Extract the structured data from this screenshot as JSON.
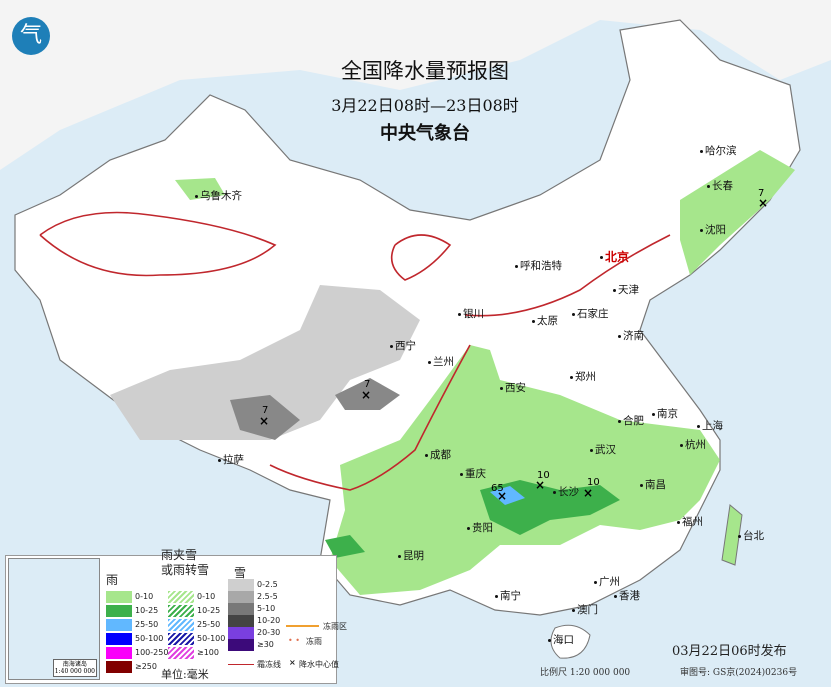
{
  "title": "全国降水量预报图",
  "period": "3月22日08时—23日08时",
  "issuer": "中央气象台",
  "logo_text": "气",
  "published": "03月22日06时发布",
  "scale": "比例尺 1:20 000 000",
  "review_no": "审图号: GS京(2024)0236号",
  "cities": [
    {
      "name": "乌鲁木齐"
    },
    {
      "name": "哈尔滨"
    },
    {
      "name": "长春"
    },
    {
      "name": "沈阳"
    },
    {
      "name": "呼和浩特"
    },
    {
      "name": "北京",
      "capital": true
    },
    {
      "name": "天津"
    },
    {
      "name": "石家庄"
    },
    {
      "name": "太原"
    },
    {
      "name": "银川"
    },
    {
      "name": "西宁"
    },
    {
      "name": "兰州"
    },
    {
      "name": "济南"
    },
    {
      "name": "郑州"
    },
    {
      "name": "西安"
    },
    {
      "name": "合肥"
    },
    {
      "name": "南京"
    },
    {
      "name": "上海"
    },
    {
      "name": "杭州"
    },
    {
      "name": "武汉"
    },
    {
      "name": "成都"
    },
    {
      "name": "重庆"
    },
    {
      "name": "长沙"
    },
    {
      "name": "南昌"
    },
    {
      "name": "拉萨"
    },
    {
      "name": "贵阳"
    },
    {
      "name": "福州"
    },
    {
      "name": "台北"
    },
    {
      "name": "昆明"
    },
    {
      "name": "南宁"
    },
    {
      "name": "广州"
    },
    {
      "name": "香港"
    },
    {
      "name": "澳门"
    },
    {
      "name": "海口"
    }
  ],
  "precip_centers": [
    "7",
    "7",
    "65",
    "10",
    "10",
    "7"
  ],
  "legend": {
    "rain_title": "雨",
    "mixed_title": "雨夹雪\n或雨转雪",
    "snow_title": "雪",
    "unit": "单位:毫米",
    "rain": [
      {
        "label": "0-10",
        "color": "#a6e68c"
      },
      {
        "label": "10-25",
        "color": "#3db04b"
      },
      {
        "label": "25-50",
        "color": "#61b8ff"
      },
      {
        "label": "50-100",
        "color": "#0000fe"
      },
      {
        "label": "100-250",
        "color": "#fa00fa"
      },
      {
        "label": "≥250",
        "color": "#810000"
      }
    ],
    "mixed": [
      {
        "label": "0-10",
        "color": "#a6e68c"
      },
      {
        "label": "10-25",
        "color": "#3db04b"
      },
      {
        "label": "25-50",
        "color": "#61b8ff"
      },
      {
        "label": "50-100",
        "color": "#1a1aa8"
      },
      {
        "label": "≥100",
        "color": "#e040e0"
      }
    ],
    "snow": [
      {
        "label": "0-2.5",
        "color": "#cfcfcf"
      },
      {
        "label": "2.5-5",
        "color": "#a8a8a8"
      },
      {
        "label": "5-10",
        "color": "#787878"
      },
      {
        "label": "10-20",
        "color": "#444444"
      },
      {
        "label": "20-30",
        "color": "#7a3fe0"
      },
      {
        "label": "≥30",
        "color": "#3c0a7a"
      }
    ],
    "freezing_rain_area": "冻雨区",
    "freezing_rain": "冻雨",
    "frost_line": "霜冻线",
    "center_value": "降水中心值",
    "inset_caption": "南海诸岛\n1:40 000 000"
  }
}
